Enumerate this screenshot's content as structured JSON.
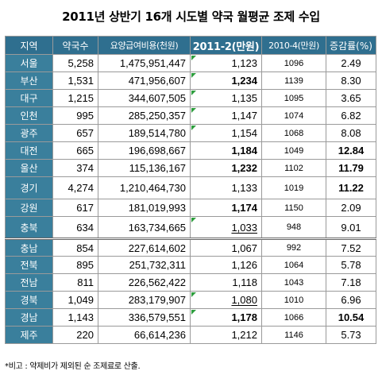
{
  "title": "2011년 상반기 16개 시도별 약국 월평균 조제 수입",
  "headers": [
    "지역",
    "약국수",
    "요양급여비용(천원)",
    "2011-2(만원)",
    "2010-4(만원)",
    "증감률(%)"
  ],
  "rows": [
    [
      "서울",
      "5,258",
      "1,475,951,447",
      "1,123",
      "1096",
      "2.49"
    ],
    [
      "부산",
      "1,531",
      "471,956,607",
      "1,234",
      "1139",
      "8.30"
    ],
    [
      "대구",
      "1,215",
      "344,607,505",
      "1,135",
      "1095",
      "3.65"
    ],
    [
      "인천",
      "995",
      "285,250,357",
      "1,147",
      "1074",
      "6.82"
    ],
    [
      "광주",
      "657",
      "189,514,780",
      "1,154",
      "1068",
      "8.08"
    ],
    [
      "대전",
      "665",
      "196,698,667",
      "1,184",
      "1049",
      "12.84"
    ],
    [
      "울산",
      "374",
      "115,136,167",
      "1,232",
      "1102",
      "11.79"
    ],
    [
      "경기",
      "4,274",
      "1,210,464,730",
      "1,133",
      "1019",
      "11.22"
    ],
    [
      "강원",
      "617",
      "181,019,993",
      "1,174",
      "1150",
      "2.09"
    ],
    [
      "충북",
      "634",
      "163,734,665",
      "1,033",
      "948",
      "9.01"
    ],
    [
      "충남",
      "854",
      "227,614,602",
      "1,067",
      "992",
      "7.52"
    ],
    [
      "전북",
      "895",
      "251,732,311",
      "1,126",
      "1064",
      "5.78"
    ],
    [
      "전남",
      "811",
      "226,562,422",
      "1,118",
      "1043",
      "7.18"
    ],
    [
      "경북",
      "1,049",
      "283,179,907",
      "1,080",
      "1010",
      "6.96"
    ],
    [
      "경남",
      "1,143",
      "336,579,551",
      "1,178",
      "1066",
      "10.54"
    ],
    [
      "제주",
      "220",
      "66,614,236",
      "1,212",
      "1146",
      "5.73"
    ]
  ],
  "note": "*비고 : 약제비가 제외된 순 조제료로 산출."
}
